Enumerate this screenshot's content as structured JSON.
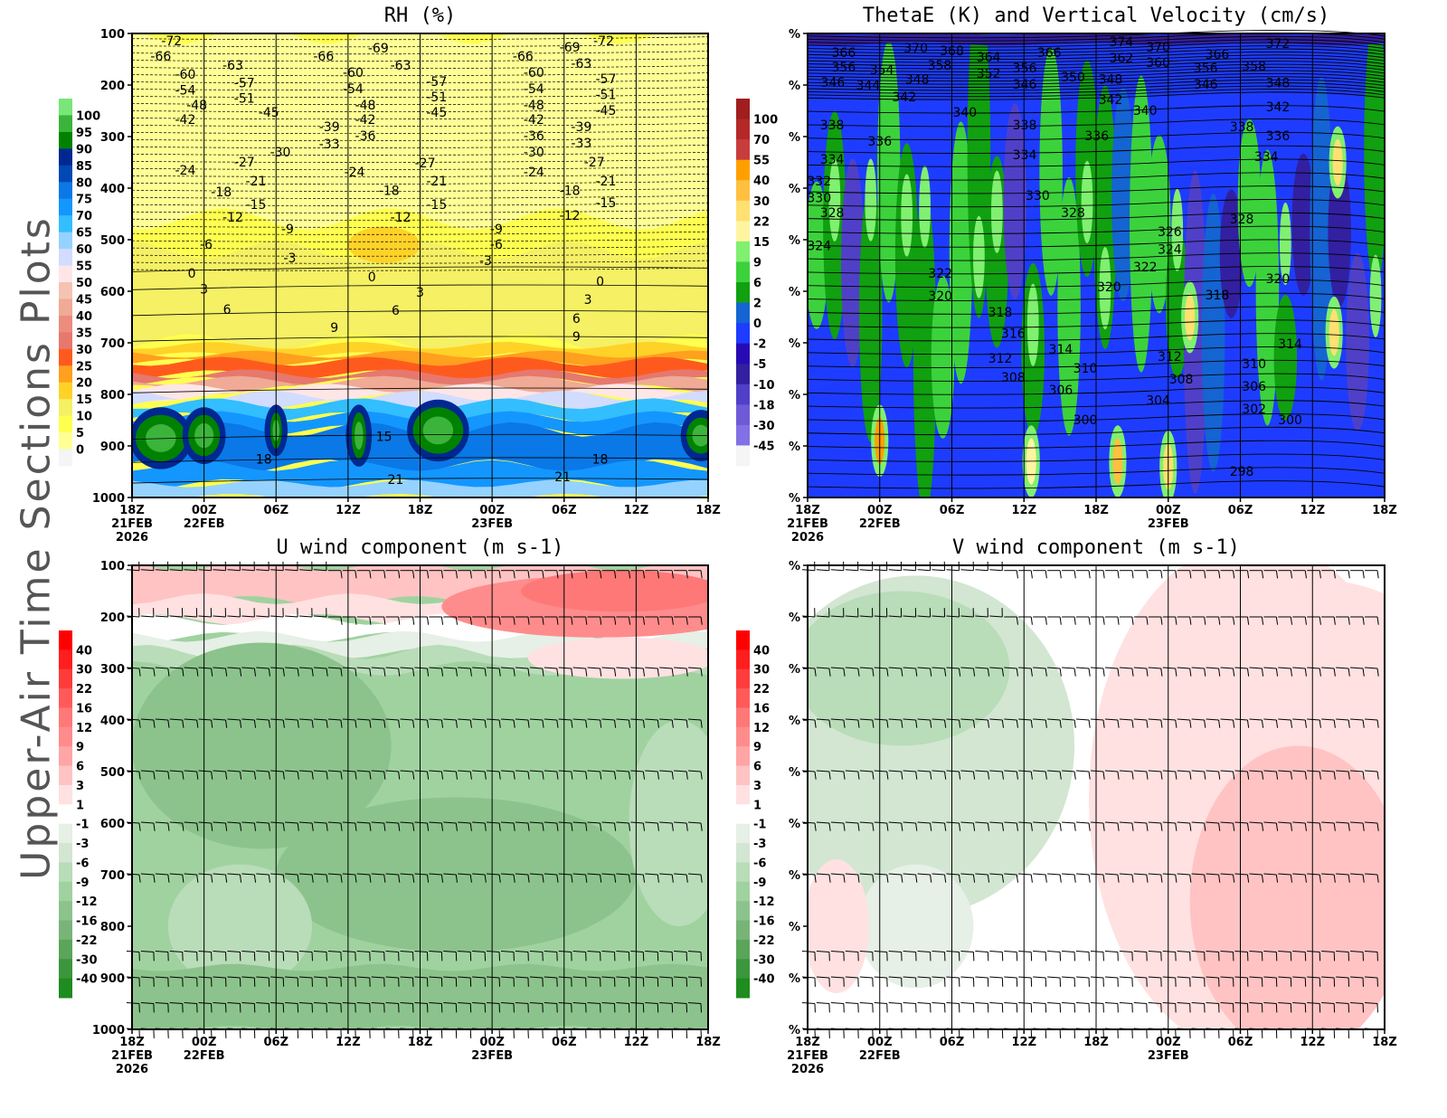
{
  "side_label": "Upper-Air Time Sections Plots",
  "chart_data": [
    {
      "type": "heatmap",
      "title": "RH (%)",
      "yaxis": {
        "ticks": [
          "100",
          "200",
          "300",
          "400",
          "500",
          "600",
          "700",
          "800",
          "900",
          "1000"
        ],
        "range": [
          100,
          1000
        ],
        "inverted": true
      },
      "xaxis": {
        "ticks": [
          "18Z",
          "00Z",
          "06Z",
          "12Z",
          "18Z",
          "00Z",
          "06Z",
          "12Z",
          "18Z"
        ],
        "dates": {
          "0": [
            "21FEB",
            "2026"
          ],
          "1": [
            "22FEB"
          ],
          "5": [
            "23FEB"
          ]
        }
      },
      "colorbar": {
        "labels": [
          "100",
          "95",
          "90",
          "85",
          "80",
          "75",
          "70",
          "65",
          "60",
          "55",
          "50",
          "45",
          "40",
          "35",
          "30",
          "25",
          "20",
          "15",
          "10",
          "5",
          "0"
        ],
        "colors": [
          "#78e678",
          "#3cb43c",
          "#008200",
          "#002890",
          "#0048b4",
          "#0a78e6",
          "#1496ff",
          "#32beff",
          "#96d2ff",
          "#d2dcff",
          "#ffe6e6",
          "#f5c3b4",
          "#f0aa96",
          "#eb8c7d",
          "#e6786e",
          "#ff5a1e",
          "#ffa01e",
          "#ffd228",
          "#f5f064",
          "#ffff50",
          "#ffff96",
          "#f5f5f5"
        ]
      },
      "contour_labels": [
        [
          "-72",
          0.55,
          114
        ],
        [
          "-66",
          0.4,
          144
        ],
        [
          "-60",
          0.74,
          179
        ],
        [
          "-54",
          0.74,
          210
        ],
        [
          "-48",
          0.9,
          239
        ],
        [
          "-42",
          0.74,
          267
        ],
        [
          "-63",
          1.4,
          161
        ],
        [
          "-57",
          1.56,
          196
        ],
        [
          "-51",
          1.56,
          225
        ],
        [
          "-45",
          1.9,
          253
        ],
        [
          "-30",
          2.06,
          330
        ],
        [
          "-27",
          1.56,
          349
        ],
        [
          "-24",
          0.74,
          365
        ],
        [
          "-21",
          1.72,
          386
        ],
        [
          "-18",
          1.24,
          407
        ],
        [
          "-15",
          1.72,
          432
        ],
        [
          "-12",
          1.4,
          456
        ],
        [
          "-9",
          2.16,
          479
        ],
        [
          "-6",
          1.03,
          509
        ],
        [
          "-3",
          2.19,
          535
        ],
        [
          "0",
          0.83,
          565
        ],
        [
          "3",
          1.0,
          596
        ],
        [
          "6",
          1.32,
          635
        ],
        [
          "9",
          2.81,
          670
        ],
        [
          "-66",
          2.66,
          144
        ],
        [
          "-60",
          3.07,
          175
        ],
        [
          "-54",
          3.07,
          207
        ],
        [
          "-48",
          3.24,
          239
        ],
        [
          "-42",
          3.24,
          267
        ],
        [
          "-39",
          2.74,
          281
        ],
        [
          "-36",
          3.24,
          298
        ],
        [
          "-33",
          2.74,
          314
        ],
        [
          "-24",
          3.09,
          368
        ],
        [
          "-69",
          3.42,
          128
        ],
        [
          "-63",
          3.73,
          161
        ],
        [
          "-57",
          4.23,
          193
        ],
        [
          "-51",
          4.23,
          223
        ],
        [
          "-45",
          4.23,
          253
        ],
        [
          "-27",
          4.07,
          351
        ],
        [
          "-21",
          4.23,
          386
        ],
        [
          "-18",
          3.57,
          404
        ],
        [
          "-15",
          4.23,
          432
        ],
        [
          "-12",
          3.73,
          456
        ],
        [
          "0",
          3.33,
          572
        ],
        [
          "3",
          4.0,
          602
        ],
        [
          "6",
          3.66,
          637
        ],
        [
          "-66",
          5.43,
          144
        ],
        [
          "-60",
          5.58,
          175
        ],
        [
          "-54",
          5.58,
          207
        ],
        [
          "-48",
          5.58,
          239
        ],
        [
          "-42",
          5.58,
          267
        ],
        [
          "-36",
          5.58,
          298
        ],
        [
          "-30",
          5.58,
          330
        ],
        [
          "-24",
          5.58,
          368
        ],
        [
          "-9",
          5.06,
          479
        ],
        [
          "-6",
          5.06,
          509
        ],
        [
          "-3",
          4.91,
          540
        ],
        [
          "-69",
          6.08,
          126
        ],
        [
          "-63",
          6.24,
          158
        ],
        [
          "-72",
          6.55,
          114
        ],
        [
          "-57",
          6.58,
          188
        ],
        [
          "-51",
          6.58,
          218
        ],
        [
          "-45",
          6.58,
          249
        ],
        [
          "-39",
          6.24,
          281
        ],
        [
          "-33",
          6.24,
          312
        ],
        [
          "-27",
          6.42,
          349
        ],
        [
          "-21",
          6.58,
          386
        ],
        [
          "-18",
          6.08,
          404
        ],
        [
          "-15",
          6.58,
          428
        ],
        [
          "-12",
          6.08,
          453
        ],
        [
          "0",
          6.5,
          581
        ],
        [
          "3",
          6.33,
          616
        ],
        [
          "6",
          6.17,
          653
        ],
        [
          "9",
          6.17,
          688
        ],
        [
          "15",
          3.5,
          882
        ],
        [
          "18",
          1.83,
          925
        ],
        [
          "18",
          6.5,
          925
        ],
        [
          "21",
          3.66,
          965
        ],
        [
          "21",
          5.98,
          960
        ]
      ]
    },
    {
      "type": "heatmap",
      "title": "ThetaE (K) and Vertical Velocity (cm/s)",
      "yaxis": {
        "ticks": [
          "%",
          "%",
          "%",
          "%",
          "%",
          "%",
          "%",
          "%",
          "%",
          "%"
        ],
        "range": [
          100,
          1000
        ],
        "inverted": true
      },
      "xaxis": {
        "ticks": [
          "18Z",
          "00Z",
          "06Z",
          "12Z",
          "18Z",
          "00Z",
          "06Z",
          "12Z",
          "18Z"
        ],
        "dates": {
          "0": [
            "21FEB",
            "2026"
          ],
          "1": [
            "22FEB"
          ],
          "5": [
            "23FEB"
          ]
        }
      },
      "colorbar": {
        "labels": [
          "100",
          "70",
          "55",
          "40",
          "30",
          "22",
          "15",
          "9",
          "6",
          "2",
          "0",
          "-2",
          "-5",
          "-10",
          "-18",
          "-30",
          "-45"
        ],
        "colors": [
          "#a01e1e",
          "#b42828",
          "#c83c3c",
          "#ffa000",
          "#ffc040",
          "#ffe070",
          "#fff5a0",
          "#80f070",
          "#3cd23c",
          "#10a010",
          "#1464d2",
          "#1e3cff",
          "#280ab4",
          "#3220a0",
          "#5040c8",
          "#6e5ad7",
          "#8270e6",
          "#f5f5f5"
        ]
      },
      "contour_labels": [
        [
          "366",
          0.5,
          137
        ],
        [
          "356",
          0.5,
          165
        ],
        [
          "346",
          0.35,
          195
        ],
        [
          "370",
          1.5,
          128
        ],
        [
          "368",
          2.0,
          133
        ],
        [
          "354",
          1.03,
          170
        ],
        [
          "344",
          0.84,
          200
        ],
        [
          "358",
          1.83,
          161
        ],
        [
          "348",
          1.52,
          189
        ],
        [
          "342",
          1.34,
          223
        ],
        [
          "364",
          2.51,
          146
        ],
        [
          "352",
          2.51,
          177
        ],
        [
          "356",
          3.01,
          167
        ],
        [
          "346",
          3.01,
          198
        ],
        [
          "366",
          3.35,
          137
        ],
        [
          "350",
          3.68,
          184
        ],
        [
          "374",
          4.35,
          116
        ],
        [
          "362",
          4.35,
          147
        ],
        [
          "370",
          4.86,
          126
        ],
        [
          "360",
          4.86,
          156
        ],
        [
          "348",
          4.2,
          189
        ],
        [
          "342",
          4.2,
          228
        ],
        [
          "340",
          4.68,
          249
        ],
        [
          "366",
          5.68,
          140
        ],
        [
          "356",
          5.52,
          167
        ],
        [
          "346",
          5.52,
          198
        ],
        [
          "358",
          6.19,
          163
        ],
        [
          "372",
          6.52,
          119
        ],
        [
          "348",
          6.52,
          196
        ],
        [
          "342",
          6.52,
          242
        ],
        [
          "340",
          2.18,
          253
        ],
        [
          "338",
          0.34,
          277
        ],
        [
          "336",
          1.0,
          309
        ],
        [
          "338",
          3.01,
          277
        ],
        [
          "336",
          4.01,
          298
        ],
        [
          "338",
          6.02,
          281
        ],
        [
          "336",
          6.52,
          298
        ],
        [
          "334",
          0.34,
          344
        ],
        [
          "334",
          3.01,
          335
        ],
        [
          "334",
          6.36,
          339
        ],
        [
          "332",
          0.16,
          386
        ],
        [
          "330",
          0.16,
          418
        ],
        [
          "328",
          0.34,
          447
        ],
        [
          "330",
          3.19,
          414
        ],
        [
          "328",
          3.68,
          447
        ],
        [
          "326",
          5.02,
          484
        ],
        [
          "324",
          5.02,
          518
        ],
        [
          "328",
          6.02,
          460
        ],
        [
          "324",
          0.16,
          511
        ],
        [
          "322",
          1.84,
          565
        ],
        [
          "320",
          1.84,
          609
        ],
        [
          "322",
          4.68,
          553
        ],
        [
          "320",
          4.18,
          591
        ],
        [
          "318",
          5.68,
          607
        ],
        [
          "320",
          6.52,
          575
        ],
        [
          "318",
          2.67,
          640
        ],
        [
          "316",
          2.85,
          682
        ],
        [
          "314",
          3.51,
          712
        ],
        [
          "312",
          2.67,
          730
        ],
        [
          "310",
          3.85,
          749
        ],
        [
          "308",
          2.85,
          767
        ],
        [
          "306",
          3.51,
          791
        ],
        [
          "312",
          5.02,
          726
        ],
        [
          "308",
          5.18,
          770
        ],
        [
          "304",
          4.86,
          811
        ],
        [
          "310",
          6.19,
          740
        ],
        [
          "306",
          6.19,
          784
        ],
        [
          "302",
          6.19,
          828
        ],
        [
          "300",
          6.69,
          849
        ],
        [
          "300",
          3.85,
          849
        ],
        [
          "314",
          6.69,
          702
        ],
        [
          "298",
          6.02,
          949
        ]
      ]
    },
    {
      "type": "heatmap",
      "title": "U wind component (m s-1)",
      "yaxis": {
        "ticks": [
          "100",
          "200",
          "300",
          "400",
          "500",
          "600",
          "700",
          "800",
          "900",
          "1000"
        ],
        "range": [
          100,
          1000
        ],
        "inverted": true
      },
      "xaxis": {
        "ticks": [
          "18Z",
          "00Z",
          "06Z",
          "12Z",
          "18Z",
          "00Z",
          "06Z",
          "12Z",
          "18Z"
        ],
        "dates": {
          "0": [
            "21FEB",
            "2026"
          ],
          "1": [
            "22FEB"
          ],
          "5": [
            "23FEB"
          ]
        }
      },
      "colorbar": {
        "labels": [
          "40",
          "30",
          "22",
          "16",
          "12",
          "9",
          "6",
          "3",
          "1",
          "-1",
          "-3",
          "-6",
          "-9",
          "-12",
          "-16",
          "-22",
          "-30",
          "-40"
        ],
        "colors": [
          "#ff0000",
          "#ff1e1e",
          "#ff3c3c",
          "#ff5a5a",
          "#ff7878",
          "#ff8c8c",
          "#ffa5a5",
          "#ffc3c3",
          "#ffe1e1",
          "#ffffff",
          "#e6f0e6",
          "#d2e6d2",
          "#b9dcb9",
          "#a0d2a0",
          "#8cc38c",
          "#78b478",
          "#5aa55a",
          "#3c963c",
          "#1e8c1e"
        ]
      },
      "wind_barb_levels": [
        110,
        200,
        300,
        400,
        500,
        600,
        700,
        850,
        900,
        950,
        1000
      ]
    },
    {
      "type": "heatmap",
      "title": "V wind component (m s-1)",
      "yaxis": {
        "ticks": [
          "%",
          "%",
          "%",
          "%",
          "%",
          "%",
          "%",
          "%",
          "%",
          "%"
        ],
        "range": [
          100,
          1000
        ],
        "inverted": true
      },
      "xaxis": {
        "ticks": [
          "18Z",
          "00Z",
          "06Z",
          "12Z",
          "18Z",
          "00Z",
          "06Z",
          "12Z",
          "18Z"
        ],
        "dates": {
          "0": [
            "21FEB",
            "2026"
          ],
          "1": [
            "22FEB"
          ],
          "5": [
            "23FEB"
          ]
        }
      },
      "colorbar": {
        "labels": [
          "40",
          "30",
          "22",
          "16",
          "12",
          "9",
          "6",
          "3",
          "1",
          "-1",
          "-3",
          "-6",
          "-9",
          "-12",
          "-16",
          "-22",
          "-30",
          "-40"
        ],
        "colors": [
          "#ff0000",
          "#ff1e1e",
          "#ff3c3c",
          "#ff5a5a",
          "#ff7878",
          "#ff8c8c",
          "#ffa5a5",
          "#ffc3c3",
          "#ffe1e1",
          "#ffffff",
          "#e6f0e6",
          "#d2e6d2",
          "#b9dcb9",
          "#a0d2a0",
          "#8cc38c",
          "#78b478",
          "#5aa55a",
          "#3c963c",
          "#1e8c1e"
        ]
      },
      "wind_barb_levels": [
        110,
        200,
        300,
        400,
        500,
        600,
        700,
        850,
        900,
        950,
        1000
      ]
    }
  ]
}
